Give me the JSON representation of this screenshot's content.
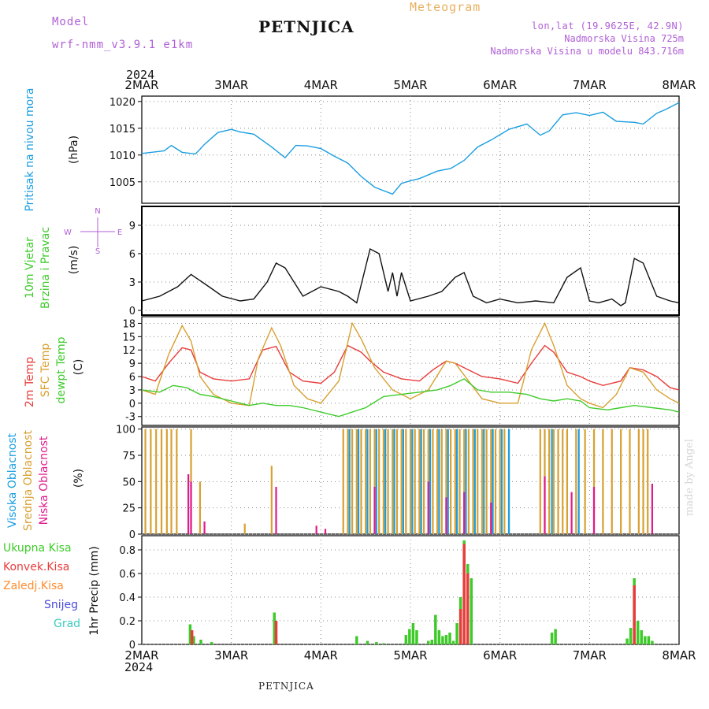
{
  "header": {
    "model_label": "Model",
    "model_name": "wrf-nmm_v3.9.1 e1km",
    "station": "PETNJICA",
    "meteogram_label": "Meteogram",
    "lonlat": "lon,lat (19.9625E, 42.9N)",
    "elevation": "Nadmorska Visina 725m",
    "elevation_model": "Nadmorska Visina u modelu 843.716m"
  },
  "footer": {
    "station": "PETNJICA",
    "credit": "made by Angel"
  },
  "time_axis": {
    "year": "2024",
    "labels": [
      "2MAR",
      "3MAR",
      "4MAR",
      "5MAR",
      "6MAR",
      "7MAR",
      "8MAR"
    ],
    "range_days": [
      0,
      6
    ]
  },
  "chart_data": [
    {
      "type": "line",
      "ylabels": [
        "Pritisak na nivou mora",
        "(hPa)"
      ],
      "yticks": [
        1005,
        1010,
        1015,
        1020
      ],
      "ylim": [
        1001,
        1021
      ],
      "grid": true,
      "series": [
        {
          "color": "#1a9ee0",
          "x": [
            0,
            0.25,
            0.33,
            0.45,
            0.6,
            0.7,
            0.85,
            1.0,
            1.1,
            1.25,
            1.45,
            1.6,
            1.72,
            1.85,
            2.0,
            2.15,
            2.3,
            2.45,
            2.6,
            2.8,
            2.9,
            3.0,
            3.1,
            3.3,
            3.45,
            3.6,
            3.75,
            3.9,
            4.1,
            4.3,
            4.45,
            4.55,
            4.7,
            4.85,
            5.0,
            5.15,
            5.3,
            5.5,
            5.6,
            5.75,
            5.85,
            6.0
          ],
          "values": [
            1010.3,
            1010.8,
            1011.8,
            1010.5,
            1010.2,
            1012.0,
            1014.2,
            1014.8,
            1014.3,
            1013.9,
            1011.5,
            1009.5,
            1011.8,
            1011.7,
            1011.2,
            1009.8,
            1008.5,
            1006.0,
            1004.0,
            1002.7,
            1004.7,
            1005.2,
            1005.6,
            1007.0,
            1007.5,
            1009.0,
            1011.5,
            1012.8,
            1014.8,
            1015.8,
            1013.7,
            1014.5,
            1017.5,
            1017.9,
            1017.4,
            1018.0,
            1016.3,
            1016.1,
            1015.8,
            1017.8,
            1018.5,
            1019.8
          ]
        }
      ]
    },
    {
      "type": "line",
      "ylabels": [
        "10m Vjetar",
        "Brzina i Pravac",
        "(m/s)"
      ],
      "compass": {
        "n": "N",
        "e": "E",
        "w": "W",
        "s": "S"
      },
      "yticks": [
        0,
        3,
        6,
        9
      ],
      "ylim": [
        -0.5,
        11
      ],
      "grid": true,
      "series": [
        {
          "color": "#111111",
          "x": [
            0,
            0.2,
            0.4,
            0.55,
            0.75,
            0.9,
            1.1,
            1.25,
            1.4,
            1.5,
            1.6,
            1.8,
            2.0,
            2.2,
            2.3,
            2.4,
            2.55,
            2.65,
            2.75,
            2.8,
            2.85,
            2.9,
            3.0,
            3.2,
            3.35,
            3.5,
            3.6,
            3.7,
            3.85,
            4.0,
            4.2,
            4.4,
            4.6,
            4.75,
            4.9,
            5.0,
            5.1,
            5.25,
            5.35,
            5.4,
            5.5,
            5.6,
            5.75,
            5.9,
            6.0
          ],
          "values": [
            1.0,
            1.5,
            2.5,
            3.8,
            2.5,
            1.5,
            1.0,
            1.2,
            3.0,
            5.0,
            4.5,
            1.5,
            2.5,
            2.0,
            1.5,
            0.8,
            6.5,
            6.0,
            2.0,
            4.0,
            1.5,
            4.0,
            1.0,
            1.5,
            2.0,
            3.5,
            4.0,
            1.5,
            0.8,
            1.2,
            0.8,
            1.0,
            0.8,
            3.5,
            4.5,
            1.0,
            0.8,
            1.2,
            0.5,
            0.8,
            5.5,
            5.0,
            1.5,
            1.0,
            0.8
          ]
        }
      ]
    },
    {
      "type": "line",
      "ylabels": [
        "2m Temp",
        "SFC Temp",
        "dewpt Temp",
        "(C)"
      ],
      "yticks": [
        -3,
        0,
        3,
        6,
        9,
        12,
        15,
        18
      ],
      "ylim": [
        -5,
        19.5
      ],
      "grid": true,
      "series": [
        {
          "name": "2m Temp",
          "color": "#e83c3c",
          "x": [
            0,
            0.15,
            0.3,
            0.45,
            0.55,
            0.65,
            0.8,
            1.0,
            1.2,
            1.35,
            1.5,
            1.65,
            1.8,
            2.0,
            2.15,
            2.3,
            2.45,
            2.55,
            2.7,
            2.9,
            3.1,
            3.25,
            3.4,
            3.5,
            3.65,
            3.8,
            4.0,
            4.2,
            4.35,
            4.5,
            4.6,
            4.75,
            4.9,
            5.0,
            5.15,
            5.35,
            5.45,
            5.6,
            5.75,
            5.9,
            6.0
          ],
          "values": [
            6.0,
            5.0,
            9.0,
            12.5,
            12.0,
            7.0,
            5.5,
            5.0,
            5.5,
            12.0,
            12.8,
            7.0,
            5.0,
            4.5,
            7.0,
            13.0,
            11.5,
            9.5,
            7.0,
            5.5,
            5.0,
            7.5,
            9.5,
            9.0,
            7.5,
            6.0,
            5.5,
            4.5,
            9.0,
            13.0,
            11.5,
            7.0,
            6.0,
            5.0,
            4.0,
            5.0,
            8.0,
            7.5,
            6.0,
            3.5,
            3.0
          ]
        },
        {
          "name": "SFC Temp",
          "color": "#d8a030",
          "x": [
            0,
            0.15,
            0.3,
            0.45,
            0.55,
            0.65,
            0.8,
            1.0,
            1.2,
            1.3,
            1.45,
            1.55,
            1.7,
            1.85,
            2.0,
            2.2,
            2.35,
            2.45,
            2.6,
            2.8,
            3.0,
            3.2,
            3.4,
            3.5,
            3.65,
            3.8,
            4.0,
            4.2,
            4.35,
            4.5,
            4.6,
            4.75,
            4.9,
            5.0,
            5.15,
            5.3,
            5.45,
            5.6,
            5.75,
            5.9,
            6.0
          ],
          "values": [
            3.0,
            2.0,
            11.0,
            17.5,
            14.0,
            6.0,
            2.0,
            0.0,
            -0.5,
            10.0,
            17.0,
            13.0,
            4.0,
            1.0,
            0.0,
            5.0,
            18.0,
            14.5,
            8.0,
            3.0,
            1.0,
            3.0,
            9.5,
            9.0,
            5.0,
            1.0,
            0.0,
            0.0,
            12.0,
            18.0,
            13.0,
            4.0,
            1.0,
            0.0,
            -1.0,
            2.0,
            8.0,
            7.0,
            3.0,
            1.0,
            0.0
          ]
        },
        {
          "name": "dewpt Temp",
          "color": "#3ecb2a",
          "x": [
            0,
            0.2,
            0.35,
            0.5,
            0.65,
            0.8,
            1.0,
            1.2,
            1.35,
            1.5,
            1.65,
            1.8,
            2.0,
            2.2,
            2.35,
            2.5,
            2.7,
            2.9,
            3.1,
            3.3,
            3.45,
            3.6,
            3.75,
            3.9,
            4.1,
            4.3,
            4.45,
            4.6,
            4.75,
            4.9,
            5.0,
            5.2,
            5.35,
            5.5,
            5.7,
            5.9,
            6.0
          ],
          "values": [
            3.0,
            2.5,
            4.0,
            3.5,
            2.0,
            1.5,
            0.5,
            -0.5,
            0.0,
            -0.5,
            -0.5,
            -1.0,
            -2.0,
            -3.0,
            -2.0,
            -1.0,
            1.5,
            2.0,
            2.5,
            3.0,
            4.0,
            5.5,
            3.0,
            2.5,
            2.5,
            2.0,
            1.0,
            0.5,
            1.0,
            0.5,
            -1.0,
            -1.5,
            -1.0,
            -0.5,
            -1.0,
            -1.5,
            -2.0
          ]
        }
      ]
    },
    {
      "type": "bar",
      "ylabels": [
        "Visoka Oblacnost",
        "Srednja Oblacnost",
        "Niska Oblacnost",
        "(%)"
      ],
      "yticks": [
        0,
        25,
        50,
        75,
        100
      ],
      "ylim": [
        0,
        102
      ],
      "grid": true,
      "series": [
        {
          "name": "Srednja Oblacnost",
          "color": "#d8a030",
          "x": [
            0.04,
            0.1,
            0.16,
            0.22,
            0.28,
            0.33,
            0.39,
            0.55,
            0.65,
            1.15,
            1.45,
            2.25,
            2.3,
            2.35,
            2.4,
            2.45,
            2.5,
            2.55,
            2.6,
            2.65,
            2.7,
            2.75,
            2.8,
            2.85,
            2.9,
            2.95,
            3.0,
            3.05,
            3.1,
            3.15,
            3.2,
            3.25,
            3.3,
            3.35,
            3.4,
            3.45,
            3.5,
            3.55,
            3.6,
            3.65,
            3.7,
            3.75,
            3.8,
            3.85,
            3.9,
            3.95,
            4.0,
            4.05,
            4.1,
            4.45,
            4.5,
            4.55,
            4.6,
            4.65,
            4.7,
            4.75,
            4.85,
            4.95,
            5.05,
            5.15,
            5.25,
            5.35,
            5.45,
            5.55,
            5.6,
            5.65
          ],
          "values": [
            100,
            100,
            100,
            100,
            100,
            100,
            100,
            100,
            50,
            10,
            65,
            100,
            100,
            100,
            100,
            100,
            100,
            100,
            100,
            100,
            100,
            100,
            100,
            100,
            100,
            100,
            100,
            100,
            100,
            100,
            100,
            100,
            100,
            100,
            100,
            100,
            100,
            100,
            100,
            100,
            100,
            100,
            100,
            100,
            100,
            100,
            100,
            100,
            100,
            100,
            100,
            100,
            100,
            100,
            100,
            100,
            100,
            100,
            100,
            100,
            100,
            100,
            100,
            100,
            100,
            100
          ]
        },
        {
          "name": "Visoka Oblacnost",
          "color": "#1a9ee0",
          "x": [
            2.32,
            2.42,
            2.52,
            2.62,
            2.72,
            2.82,
            2.92,
            3.02,
            3.12,
            3.22,
            3.32,
            3.42,
            3.52,
            3.62,
            3.72,
            3.82,
            3.92,
            4.02,
            4.1,
            4.58,
            4.88
          ],
          "values": [
            100,
            100,
            100,
            100,
            100,
            100,
            100,
            100,
            100,
            100,
            100,
            100,
            100,
            100,
            100,
            100,
            100,
            100,
            100,
            100,
            100
          ]
        },
        {
          "name": "Niska Oblacnost",
          "color": "#e01a8c",
          "x": [
            0.52,
            0.55,
            0.7,
            1.5,
            1.95,
            2.05,
            2.6,
            3.2,
            3.4,
            3.6,
            3.9,
            4.5,
            4.8,
            5.05,
            5.7
          ],
          "values": [
            57,
            50,
            12,
            45,
            8,
            5,
            45,
            50,
            35,
            40,
            30,
            55,
            40,
            45,
            48
          ]
        }
      ]
    },
    {
      "type": "bar",
      "ylabels": [
        "1hr Precip (mm)"
      ],
      "legend": [
        {
          "name": "Ukupna Kisa",
          "color": "#3ecb2a"
        },
        {
          "name": "Konvek.Kisa",
          "color": "#e83c3c"
        },
        {
          "name": "Zaledj.Kisa",
          "color": "#ff8c30"
        },
        {
          "name": "Snijeg",
          "color": "#4a4ae0"
        },
        {
          "name": "Grad",
          "color": "#3ecbc0"
        }
      ],
      "yticks": [
        0,
        0.2,
        0.4,
        0.6,
        0.8
      ],
      "ylim": [
        0,
        0.92
      ],
      "grid": true,
      "series": [
        {
          "name": "Ukupna Kisa",
          "color": "#3ecb2a",
          "x": [
            0.54,
            0.58,
            0.66,
            0.78,
            1.48,
            1.5,
            2.4,
            2.52,
            2.62,
            2.7,
            2.95,
            2.99,
            3.03,
            3.07,
            3.2,
            3.24,
            3.28,
            3.32,
            3.36,
            3.4,
            3.44,
            3.48,
            3.52,
            3.56,
            3.6,
            3.64,
            3.68,
            4.58,
            4.62,
            5.42,
            5.46,
            5.5,
            5.54,
            5.58,
            5.62,
            5.66,
            5.7
          ],
          "values": [
            0.17,
            0.07,
            0.04,
            0.02,
            0.27,
            0.05,
            0.07,
            0.03,
            0.02,
            0.01,
            0.08,
            0.13,
            0.18,
            0.12,
            0.03,
            0.04,
            0.25,
            0.12,
            0.07,
            0.08,
            0.1,
            0.03,
            0.18,
            0.4,
            0.88,
            0.68,
            0.56,
            0.1,
            0.13,
            0.05,
            0.14,
            0.56,
            0.2,
            0.12,
            0.07,
            0.07,
            0.03
          ]
        },
        {
          "name": "Konvek.Kisa",
          "color": "#e83c3c",
          "x": [
            0.56,
            1.5,
            3.56,
            3.6,
            3.64,
            5.5
          ],
          "values": [
            0.12,
            0.2,
            0.3,
            0.85,
            0.6,
            0.5
          ]
        }
      ]
    }
  ]
}
